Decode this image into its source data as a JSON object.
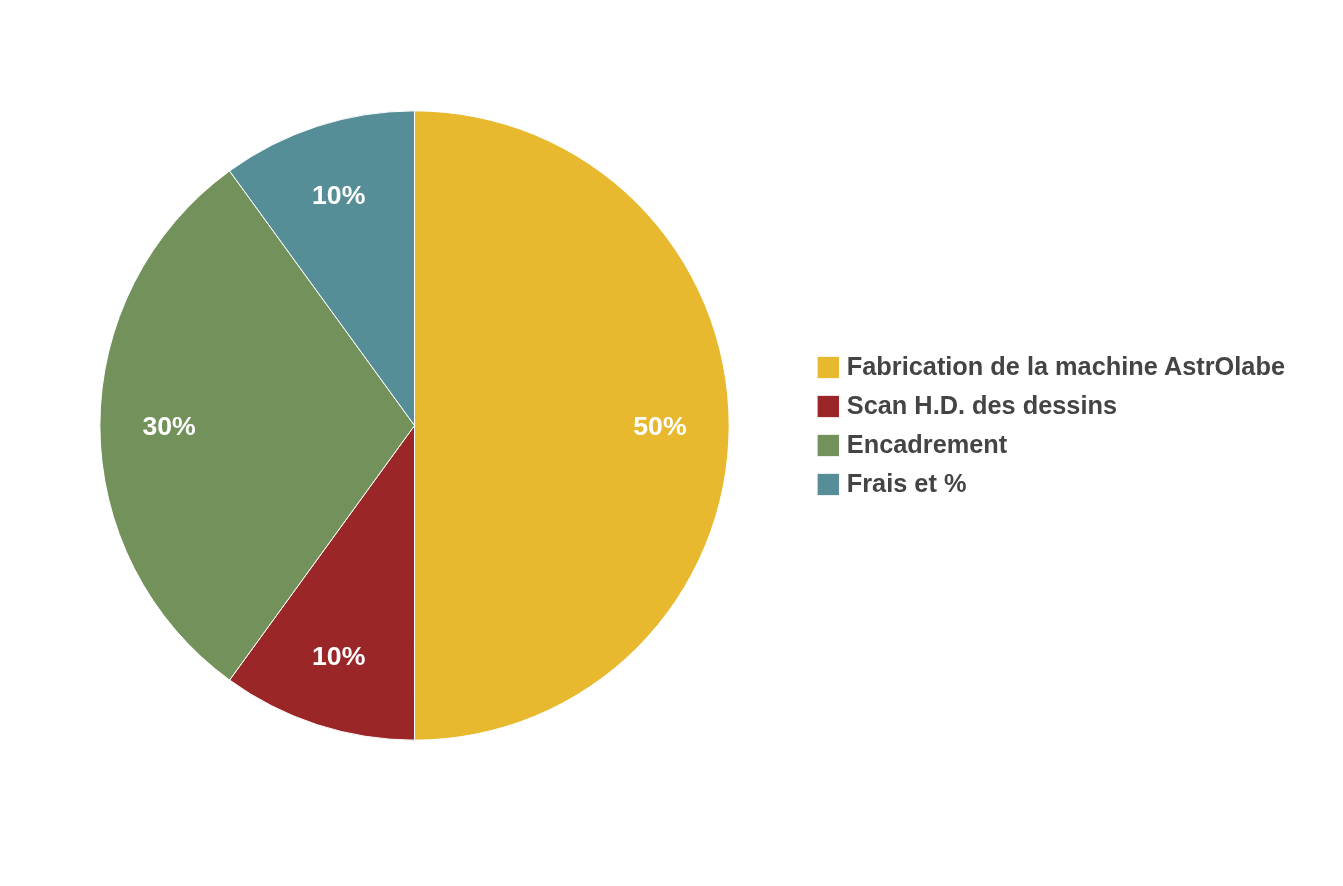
{
  "chart_data": {
    "type": "pie",
    "categories": [
      "Fabrication de la machine AstrOlabe",
      "Scan H.D. des dessins",
      "Encadrement",
      "Frais et %"
    ],
    "values": [
      50,
      10,
      30,
      10
    ],
    "colors": [
      "#e8b92f",
      "#9b2628",
      "#73915a",
      "#568e98"
    ],
    "value_labels": [
      "50%",
      "10%",
      "30%",
      "10%"
    ],
    "legend": "right"
  }
}
